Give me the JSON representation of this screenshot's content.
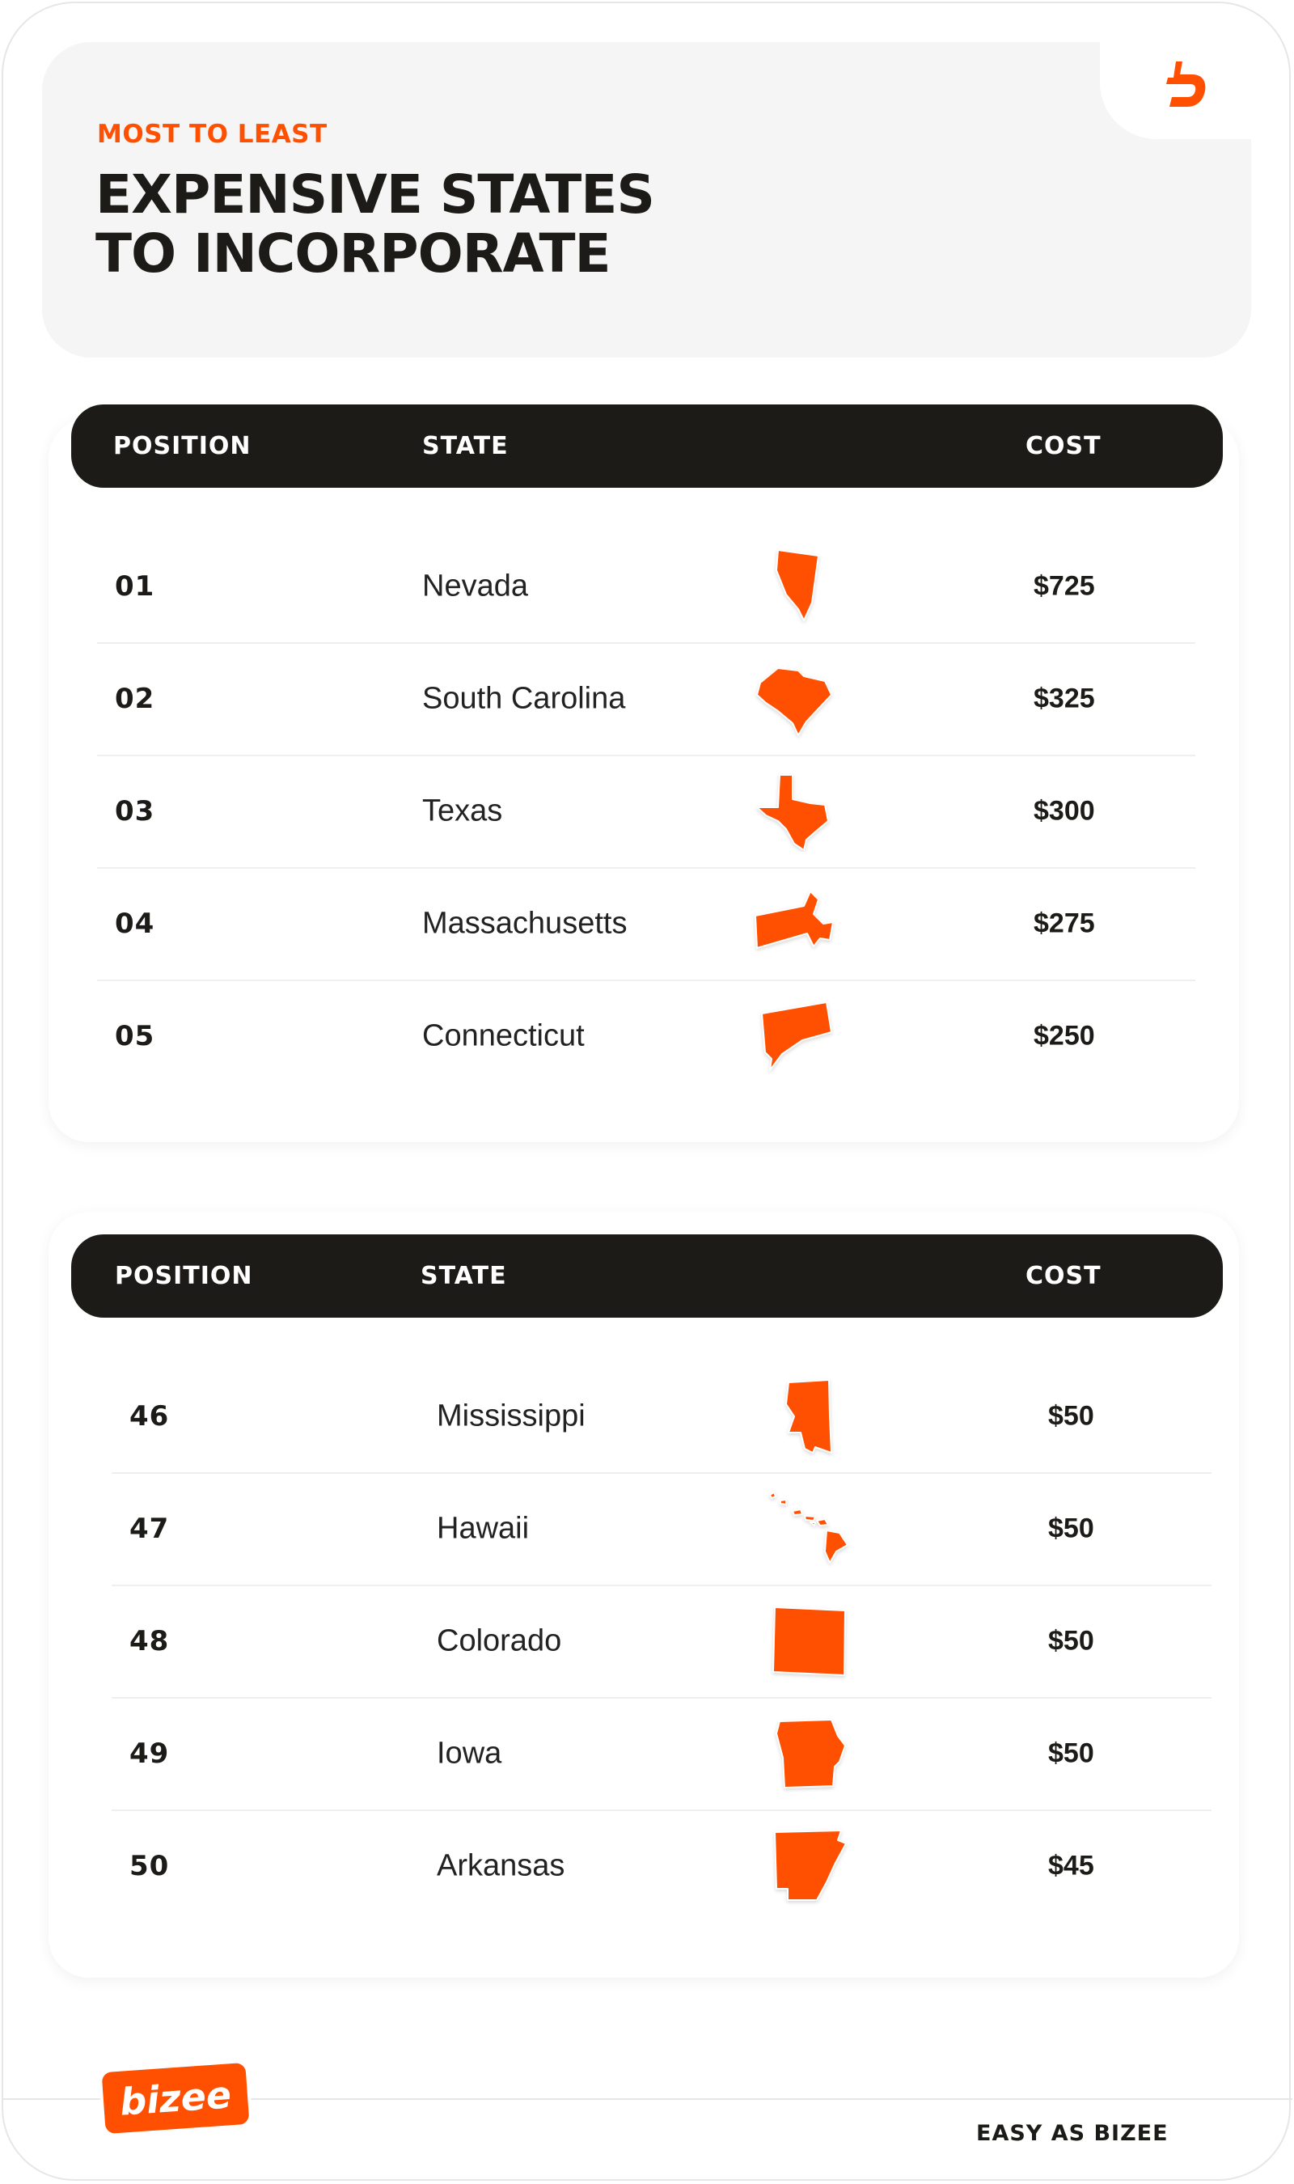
{
  "colors": {
    "accent": "#FF4F00",
    "dark": "#1C1B18",
    "panel": "#F5F5F5"
  },
  "header": {
    "eyebrow": "MOST TO LEAST",
    "title_line1": "EXPENSIVE STATES",
    "title_line2": "TO INCORPORATE",
    "logo_icon": "bizee-b-icon"
  },
  "table_top": {
    "columns": {
      "position": "POSITION",
      "state": "STATE",
      "cost": "COST"
    },
    "rows": [
      {
        "position": "01",
        "state": "Nevada",
        "cost": "$725",
        "icon": "nevada-map-icon"
      },
      {
        "position": "02",
        "state": "South Carolina",
        "cost": "$325",
        "icon": "south-carolina-map-icon"
      },
      {
        "position": "03",
        "state": "Texas",
        "cost": "$300",
        "icon": "texas-map-icon"
      },
      {
        "position": "04",
        "state": "Massachusetts",
        "cost": "$275",
        "icon": "massachusetts-map-icon"
      },
      {
        "position": "05",
        "state": "Connecticut",
        "cost": "$250",
        "icon": "connecticut-map-icon"
      }
    ]
  },
  "table_bottom": {
    "columns": {
      "position": "POSITION",
      "state": "STATE",
      "cost": "COST"
    },
    "rows": [
      {
        "position": "46",
        "state": "Mississippi",
        "cost": "$50",
        "icon": "mississippi-map-icon"
      },
      {
        "position": "47",
        "state": "Hawaii",
        "cost": "$50",
        "icon": "hawaii-map-icon"
      },
      {
        "position": "48",
        "state": "Colorado",
        "cost": "$50",
        "icon": "colorado-map-icon"
      },
      {
        "position": "49",
        "state": "Iowa",
        "cost": "$50",
        "icon": "iowa-map-icon"
      },
      {
        "position": "50",
        "state": "Arkansas",
        "cost": "$45",
        "icon": "arkansas-map-icon"
      }
    ]
  },
  "footer": {
    "logo_text": "bizee",
    "tagline": "EASY AS BIZEE"
  }
}
